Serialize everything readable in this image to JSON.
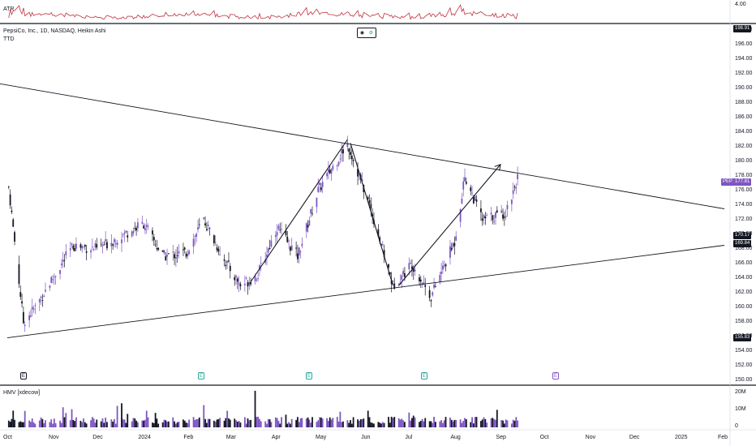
{
  "atr_pane": {
    "label": "ATR",
    "scale_value": "4.00"
  },
  "main_pane": {
    "title": "PepsiCo, Inc., 1D, NASDAQ, Heikin Ashi",
    "sub_label": "TTD",
    "y_ticks": [
      "198.00",
      "196.00",
      "194.00",
      "192.00",
      "190.00",
      "188.00",
      "186.00",
      "184.00",
      "182.00",
      "180.00",
      "178.00",
      "176.00",
      "174.00",
      "172.00",
      "170.00",
      "168.00",
      "166.00",
      "164.00",
      "162.00",
      "160.00",
      "158.00",
      "156.00",
      "154.00",
      "152.00",
      "150.00"
    ],
    "price_tags": {
      "high": "198.91",
      "symbol": "PEP",
      "last": "177.81",
      "level_a": "170.17",
      "level_b": "169.84",
      "low": "155.83"
    },
    "event_markers": [
      "E",
      "E",
      "E",
      "E",
      "E"
    ],
    "legend_icons": [
      "eye-icon",
      "settings-icon"
    ]
  },
  "volume_pane": {
    "label": "HMV [xdecow]",
    "y_ticks": [
      "20M",
      "10M",
      "0"
    ]
  },
  "x_axis": {
    "labels": [
      "Oct",
      "Nov",
      "Dec",
      "2024",
      "Feb",
      "Mar",
      "Apr",
      "May",
      "Jun",
      "Jul",
      "Aug",
      "Sep",
      "Oct",
      "Nov",
      "Dec",
      "2025",
      "Feb"
    ]
  },
  "colors": {
    "up": "#7e57c2",
    "down": "#131722",
    "atr_line": "#c2303f",
    "trendline": "#131722",
    "pep_tag": "#7e57c2"
  },
  "chart_data": {
    "type": "candlestick",
    "title": "PepsiCo, Inc., 1D, NASDAQ, Heikin Ashi",
    "ylim": [
      150,
      199
    ],
    "x_range": [
      "2023-10-01",
      "2025-02-01"
    ],
    "price_path": [
      {
        "date": "2023-10-02",
        "close": 176.5
      },
      {
        "date": "2023-10-12",
        "close": 158.0
      },
      {
        "date": "2023-10-20",
        "close": 160.0
      },
      {
        "date": "2023-11-01",
        "close": 164.0
      },
      {
        "date": "2023-11-15",
        "close": 168.5
      },
      {
        "date": "2023-12-01",
        "close": 168.0
      },
      {
        "date": "2023-12-15",
        "close": 169.5
      },
      {
        "date": "2024-01-02",
        "close": 171.5
      },
      {
        "date": "2024-01-15",
        "close": 167.0
      },
      {
        "date": "2024-01-31",
        "close": 167.5
      },
      {
        "date": "2024-02-12",
        "close": 172.0
      },
      {
        "date": "2024-02-26",
        "close": 166.5
      },
      {
        "date": "2024-03-08",
        "close": 163.0
      },
      {
        "date": "2024-03-20",
        "close": 164.5
      },
      {
        "date": "2024-04-02",
        "close": 171.0
      },
      {
        "date": "2024-04-16",
        "close": 167.0
      },
      {
        "date": "2024-04-30",
        "close": 176.0
      },
      {
        "date": "2024-05-20",
        "close": 182.5
      },
      {
        "date": "2024-06-05",
        "close": 173.5
      },
      {
        "date": "2024-06-20",
        "close": 163.0
      },
      {
        "date": "2024-07-03",
        "close": 166.0
      },
      {
        "date": "2024-07-16",
        "close": 161.5
      },
      {
        "date": "2024-08-01",
        "close": 169.0
      },
      {
        "date": "2024-08-08",
        "close": 178.0
      },
      {
        "date": "2024-08-20",
        "close": 172.0
      },
      {
        "date": "2024-09-05",
        "close": 173.0
      },
      {
        "date": "2024-09-13",
        "close": 177.8
      }
    ],
    "trendlines": [
      {
        "from": {
          "date": "2023-09-01",
          "price": 191.5
        },
        "to": {
          "date": "2025-02-01",
          "price": 173.5
        }
      },
      {
        "from": {
          "date": "2023-10-01",
          "price": 155.83
        },
        "to": {
          "date": "2025-02-01",
          "price": 168.5
        }
      }
    ],
    "arrows": [
      {
        "from": {
          "date": "2024-03-15",
          "price": 163.5
        },
        "to": {
          "date": "2024-05-20",
          "price": 183.0
        }
      },
      {
        "from": {
          "date": "2024-05-22",
          "price": 182.5
        },
        "to": {
          "date": "2024-06-20",
          "price": 163.0
        }
      },
      {
        "from": {
          "date": "2024-06-24",
          "price": 163.0
        },
        "to": {
          "date": "2024-09-01",
          "price": 179.5
        }
      }
    ],
    "volume_ylim": [
      0,
      20
    ],
    "volume_unit": "M"
  }
}
